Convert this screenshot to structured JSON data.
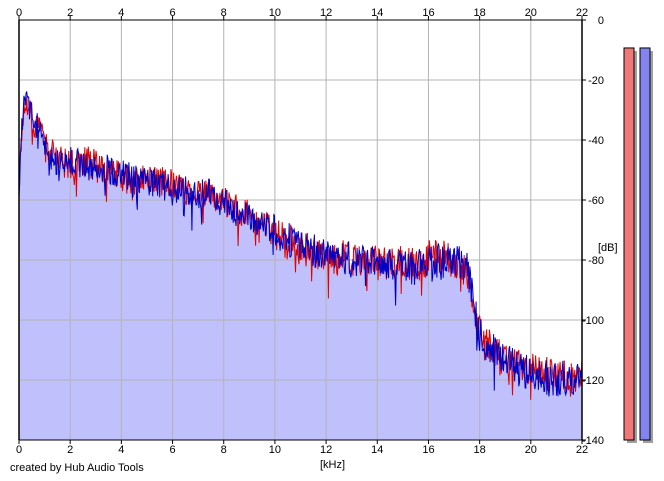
{
  "footer": {
    "credit": "created by Hub Audio Tools"
  },
  "chart_data": {
    "type": "line",
    "title": "",
    "xlabel": "[kHz]",
    "ylabel": "[dB]",
    "xlim": [
      0,
      22
    ],
    "ylim": [
      -140,
      0
    ],
    "x_ticks": [
      0,
      2,
      4,
      6,
      8,
      10,
      12,
      14,
      16,
      18,
      20,
      22
    ],
    "y_ticks": [
      0,
      -20,
      -40,
      -60,
      -80,
      -100,
      -120,
      -140
    ],
    "y_tick_labels": [
      "0",
      "-20",
      "-40",
      "-60",
      "-80",
      "-100",
      "-120",
      "-140"
    ],
    "grid": true,
    "colors": {
      "background": "#ffffff",
      "plot_fill": "#c0c0fc",
      "grid": "#b4b4b4",
      "left_channel": "#e00000",
      "right_channel": "#0000c8",
      "left_meter": "#f07878",
      "right_meter": "#8484f0"
    },
    "series": [
      {
        "color": "#e00000",
        "x": [
          0,
          0.1,
          0.2,
          0.3,
          0.4,
          0.5,
          0.6,
          0.8,
          1,
          1.2,
          1.5,
          2,
          2.5,
          3,
          3.5,
          4,
          4.5,
          5,
          5.5,
          6,
          6.5,
          7,
          7.5,
          8,
          8.5,
          9,
          9.5,
          10,
          10.5,
          11,
          11.5,
          12,
          12.5,
          13,
          13.5,
          14,
          14.5,
          15,
          15.5,
          16,
          16.5,
          17,
          17.5,
          17.8,
          18,
          18.5,
          19,
          19.5,
          20,
          20.5,
          21,
          21.5,
          22
        ],
        "y": [
          -55,
          -38,
          -30,
          -28,
          -27,
          -32,
          -36,
          -32,
          -40,
          -44,
          -46,
          -48,
          -47,
          -47,
          -51,
          -52,
          -54,
          -53,
          -54,
          -54,
          -57,
          -57,
          -59,
          -60,
          -63,
          -65,
          -67,
          -71,
          -74,
          -76,
          -77,
          -79,
          -79,
          -80,
          -81,
          -81,
          -81,
          -81,
          -82,
          -79,
          -79,
          -81,
          -84,
          -96,
          -104,
          -109,
          -112,
          -114,
          -117,
          -118,
          -118,
          -120,
          -119
        ]
      },
      {
        "color": "#0000c8",
        "x": [
          0,
          0.1,
          0.2,
          0.3,
          0.4,
          0.5,
          0.6,
          0.8,
          1,
          1.2,
          1.5,
          2,
          2.5,
          3,
          3.5,
          4,
          4.5,
          5,
          5.5,
          6,
          6.5,
          7,
          7.5,
          8,
          8.5,
          9,
          9.5,
          10,
          10.5,
          11,
          11.5,
          12,
          12.5,
          13,
          13.5,
          14,
          14.5,
          15,
          15.5,
          16,
          16.5,
          17,
          17.5,
          17.8,
          18,
          18.5,
          19,
          19.5,
          20,
          20.5,
          21,
          21.5,
          22
        ],
        "y": [
          -57,
          -36,
          -28,
          -26,
          -24,
          -30,
          -35,
          -33,
          -42,
          -45,
          -47,
          -47,
          -48,
          -49,
          -50,
          -51,
          -53,
          -54,
          -55,
          -56,
          -57,
          -58,
          -58,
          -61,
          -64,
          -66,
          -68,
          -70,
          -73,
          -75,
          -77,
          -78,
          -79,
          -80,
          -80,
          -81,
          -82,
          -82,
          -81,
          -80,
          -80,
          -80,
          -83,
          -95,
          -105,
          -110,
          -113,
          -116,
          -118,
          -119,
          -120,
          -119,
          -120
        ]
      }
    ],
    "meters": {
      "left": 0.99,
      "right": 0.99
    }
  }
}
